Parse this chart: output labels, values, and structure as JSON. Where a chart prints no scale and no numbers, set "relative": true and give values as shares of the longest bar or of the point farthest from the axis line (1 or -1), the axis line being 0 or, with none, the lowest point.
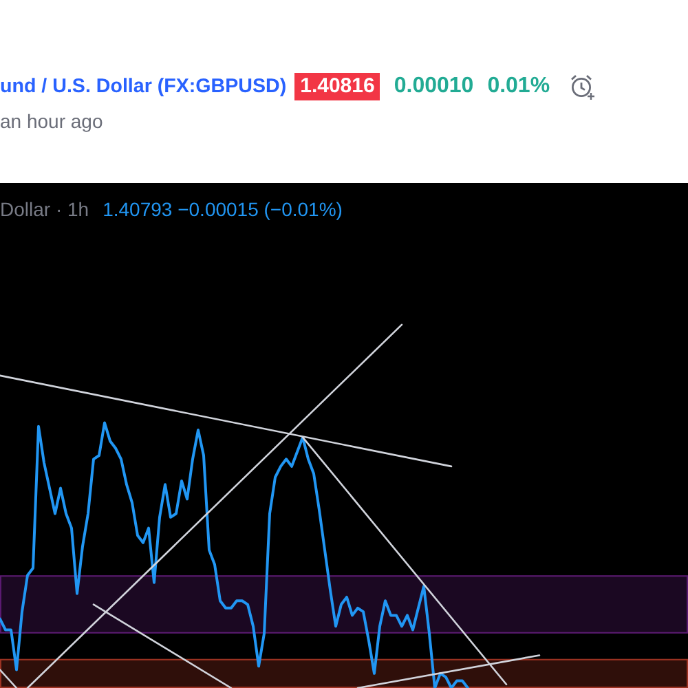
{
  "chart_data": {
    "type": "line",
    "relative": true,
    "title": "und / U.S. Dollar (FX:GBPUSD)",
    "subtitle": "an hour ago",
    "annotations": [
      "1.40816",
      "0.00010",
      "0.01%",
      "Dollar · 1h",
      "1.40793 −0.00015 (−0.01%)"
    ],
    "categories": [
      null,
      null,
      null,
      null,
      null,
      null,
      null,
      null,
      null,
      null,
      null,
      null,
      null,
      null,
      null,
      null,
      null,
      null,
      null,
      null,
      null,
      null,
      null,
      null,
      null,
      null,
      null,
      null,
      null,
      null,
      null,
      null,
      null,
      null,
      null,
      null,
      null,
      null,
      null,
      null,
      null,
      null,
      null,
      null,
      null,
      null,
      null,
      null,
      null,
      null,
      null,
      null,
      null,
      null,
      null,
      null,
      null,
      null,
      null,
      null,
      null,
      null,
      null,
      null,
      null,
      null,
      null,
      null,
      null,
      null,
      null,
      null,
      null,
      null,
      null,
      null,
      null,
      null,
      null,
      null,
      null,
      null,
      null,
      null,
      null,
      null,
      null,
      null,
      null,
      null,
      null,
      null,
      null,
      null,
      null,
      null,
      null,
      null,
      null,
      null,
      null,
      null,
      null,
      null,
      null,
      null,
      null,
      null,
      null,
      null,
      null,
      null,
      null,
      null,
      null,
      null,
      null,
      null,
      null,
      null,
      null,
      null,
      null,
      null,
      null,
      null
    ],
    "series": [
      {
        "color": "#2196f3",
        "values": [
          0.19,
          0.16,
          0.16,
          0.05,
          0.21,
          0.31,
          0.33,
          0.72,
          0.62,
          0.55,
          0.48,
          0.55,
          0.48,
          0.44,
          0.26,
          0.39,
          0.48,
          0.63,
          0.64,
          0.73,
          0.68,
          0.66,
          0.63,
          0.56,
          0.51,
          0.42,
          0.4,
          0.44,
          0.29,
          0.47,
          0.56,
          0.47,
          0.48,
          0.57,
          0.52,
          0.63,
          0.71,
          0.64,
          0.38,
          0.34,
          0.24,
          0.22,
          0.22,
          0.24,
          0.24,
          0.23,
          0.17,
          0.06,
          0.15,
          0.48,
          0.58,
          0.61,
          0.63,
          0.61,
          0.65,
          0.69,
          0.63,
          0.59,
          0.49,
          0.38,
          0.27,
          0.17,
          0.23,
          0.25,
          0.2,
          0.22,
          0.21,
          0.13,
          0.04,
          0.17,
          0.24,
          0.2,
          0.2,
          0.17,
          0.2,
          0.16,
          0.22,
          0.28,
          0.15,
          0,
          0.04,
          0.03,
          0,
          0.02,
          0.02,
          0,
          null,
          null,
          null,
          null,
          null,
          null,
          null,
          null,
          null,
          null,
          null,
          null,
          null,
          null,
          null,
          null,
          null,
          null,
          null,
          null,
          null,
          null,
          null,
          null,
          null,
          null,
          null,
          null,
          null,
          null,
          null,
          null,
          null,
          null,
          null,
          null,
          null,
          null,
          null,
          null
        ]
      },
      {
        "color": "#d1d4dc",
        "values": [
          0.86,
          null,
          null,
          null,
          null,
          null,
          null,
          null,
          null,
          null,
          null,
          null,
          null,
          null,
          null,
          null,
          null,
          null,
          null,
          null,
          null,
          null,
          null,
          null,
          null,
          null,
          null,
          null,
          null,
          null,
          null,
          null,
          null,
          null,
          null,
          null,
          null,
          null,
          null,
          null,
          null,
          null,
          null,
          null,
          null,
          null,
          null,
          null,
          null,
          null,
          null,
          null,
          null,
          null,
          null,
          null,
          null,
          null,
          null,
          null,
          null,
          null,
          null,
          null,
          null,
          null,
          null,
          null,
          null,
          null,
          null,
          null,
          null,
          null,
          null,
          null,
          null,
          null,
          null,
          null,
          null,
          null,
          0.61,
          null,
          null,
          null,
          null,
          null,
          null,
          null,
          null,
          null,
          null,
          null,
          null,
          null,
          null,
          null,
          null,
          null,
          null,
          null,
          null,
          null,
          null,
          null,
          null,
          null,
          null,
          null,
          null,
          null,
          null,
          null,
          null,
          null,
          null,
          null,
          null,
          null,
          null,
          null,
          null,
          null,
          null,
          null
        ]
      },
      {
        "color": "#d1d4dc",
        "values": [
          null,
          null,
          null,
          null,
          null,
          0,
          null,
          null,
          null,
          null,
          null,
          null,
          null,
          null,
          null,
          null,
          null,
          null,
          null,
          null,
          null,
          null,
          null,
          null,
          null,
          null,
          null,
          null,
          null,
          null,
          null,
          null,
          null,
          null,
          null,
          null,
          null,
          null,
          null,
          null,
          null,
          null,
          null,
          null,
          null,
          null,
          null,
          null,
          null,
          null,
          null,
          null,
          null,
          null,
          null,
          null,
          null,
          null,
          null,
          null,
          null,
          null,
          null,
          null,
          null,
          null,
          null,
          null,
          null,
          null,
          null,
          null,
          null,
          1,
          null,
          null,
          null,
          null,
          null,
          null,
          null,
          null,
          null,
          null,
          null,
          null,
          null,
          null,
          null,
          null,
          null,
          null,
          null,
          null,
          null,
          null,
          null,
          null,
          null,
          null,
          null,
          null,
          null,
          null,
          null,
          null,
          null,
          null,
          null,
          null,
          null,
          null,
          null,
          null,
          null,
          null,
          null,
          null,
          null,
          null,
          null,
          null,
          null,
          null,
          null,
          null
        ]
      },
      {
        "color": "#d1d4dc",
        "values": [
          null,
          null,
          null,
          null,
          null,
          null,
          null,
          null,
          null,
          null,
          null,
          null,
          null,
          null,
          null,
          null,
          null,
          null,
          null,
          null,
          null,
          null,
          null,
          null,
          null,
          null,
          null,
          null,
          null,
          null,
          null,
          null,
          null,
          null,
          null,
          null,
          null,
          null,
          null,
          null,
          null,
          null,
          null,
          null,
          null,
          null,
          null,
          null,
          null,
          null,
          null,
          null,
          null,
          null,
          null,
          0.69,
          null,
          null,
          null,
          null,
          null,
          null,
          null,
          null,
          null,
          null,
          null,
          null,
          null,
          null,
          null,
          null,
          null,
          null,
          null,
          null,
          null,
          null,
          null,
          null,
          null,
          null,
          null,
          null,
          null,
          null,
          null,
          null,
          null,
          null,
          null,
          null,
          0.01,
          null,
          null,
          null,
          null,
          null,
          null,
          null,
          null,
          null,
          null,
          null,
          null,
          null,
          null,
          null,
          null,
          null,
          null,
          null,
          null,
          null,
          null,
          null,
          null,
          null,
          null,
          null,
          null,
          null,
          null,
          null,
          null,
          null
        ]
      },
      {
        "color": "#d1d4dc",
        "values": [
          null,
          null,
          null,
          null,
          null,
          null,
          null,
          null,
          null,
          null,
          null,
          null,
          null,
          null,
          null,
          null,
          null,
          0.23,
          null,
          null,
          null,
          null,
          null,
          null,
          null,
          null,
          null,
          null,
          null,
          null,
          null,
          null,
          null,
          null,
          null,
          null,
          null,
          null,
          null,
          null,
          null,
          null,
          0,
          null,
          null,
          null,
          null,
          null,
          null,
          null,
          null,
          null,
          null,
          null,
          null,
          null,
          null,
          null,
          null,
          null,
          null,
          null,
          null,
          null,
          null,
          null,
          null,
          null,
          null,
          null,
          null,
          null,
          null,
          null,
          null,
          null,
          null,
          null,
          null,
          null,
          null,
          null,
          null,
          null,
          null,
          null,
          null,
          null,
          null,
          null,
          null,
          null,
          null,
          null,
          null,
          null,
          null,
          null,
          null,
          null,
          null,
          null,
          null,
          null,
          null,
          null,
          null,
          null,
          null,
          null,
          null,
          null,
          null,
          null,
          null,
          null,
          null,
          null,
          null,
          null,
          null,
          null,
          null,
          null,
          null,
          null
        ]
      },
      {
        "color": "#d1d4dc",
        "values": [
          0.05,
          null,
          null,
          0,
          null,
          null,
          null,
          null,
          null,
          null,
          null,
          null,
          null,
          null,
          null,
          null,
          null,
          null,
          null,
          null,
          null,
          null,
          null,
          null,
          null,
          null,
          null,
          null,
          null,
          null,
          null,
          null,
          null,
          null,
          null,
          null,
          null,
          null,
          null,
          null,
          null,
          null,
          null,
          null,
          null,
          null,
          null,
          null,
          null,
          null,
          null,
          null,
          null,
          null,
          null,
          null,
          null,
          null,
          null,
          null,
          null,
          null,
          null,
          null,
          null,
          null,
          null,
          null,
          null,
          null,
          null,
          null,
          null,
          null,
          null,
          null,
          null,
          null,
          null,
          null,
          null,
          null,
          null,
          null,
          null,
          null,
          null,
          null,
          null,
          null,
          null,
          null,
          null,
          null,
          null,
          null,
          null,
          null,
          null,
          null,
          null,
          null,
          null,
          null,
          null,
          null,
          null,
          null,
          null,
          null,
          null,
          null,
          null,
          null,
          null,
          null,
          null,
          null,
          null,
          null,
          null,
          null,
          null,
          null,
          null,
          null
        ]
      },
      {
        "color": "#d1d4dc",
        "values": [
          null,
          null,
          null,
          null,
          null,
          null,
          null,
          null,
          null,
          null,
          null,
          null,
          null,
          null,
          null,
          null,
          null,
          null,
          null,
          null,
          null,
          null,
          null,
          null,
          null,
          null,
          null,
          null,
          null,
          null,
          null,
          null,
          null,
          null,
          null,
          null,
          null,
          null,
          null,
          null,
          null,
          null,
          null,
          null,
          null,
          null,
          null,
          null,
          null,
          null,
          null,
          null,
          null,
          null,
          null,
          null,
          null,
          null,
          null,
          null,
          null,
          null,
          null,
          null,
          null,
          0,
          null,
          null,
          null,
          null,
          null,
          null,
          null,
          null,
          null,
          null,
          null,
          null,
          null,
          null,
          null,
          null,
          null,
          null,
          null,
          null,
          null,
          null,
          null,
          null,
          null,
          null,
          null,
          null,
          null,
          null,
          null,
          null,
          0.09,
          null,
          null,
          null,
          null,
          null,
          null,
          null,
          null,
          null,
          null,
          null,
          null,
          null,
          null,
          null,
          null,
          null,
          null,
          null,
          null,
          null,
          null,
          null,
          null,
          null,
          null,
          null
        ]
      }
    ],
    "bands": [
      {
        "axis": "y",
        "from": 0.15,
        "to": 0.31,
        "color": "#5a1a70"
      },
      {
        "axis": "y",
        "from": 0,
        "to": 0.08,
        "color": "#9c3222"
      }
    ],
    "marker": "none",
    "legend": false
  }
}
